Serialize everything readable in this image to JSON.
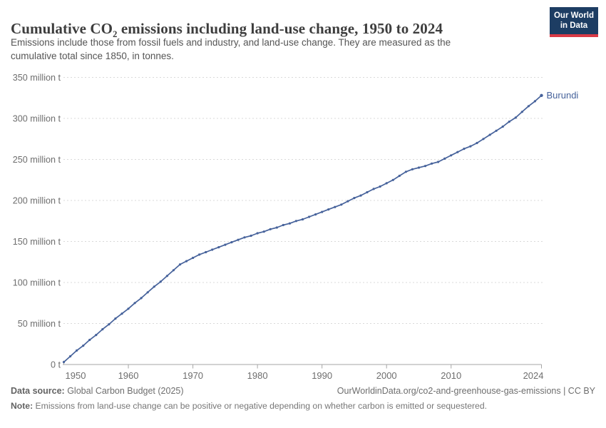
{
  "header": {
    "title_prefix": "Cumulative CO",
    "title_subscript": "2",
    "title_suffix": " emissions including land-use change, 1950 to 2024",
    "subtitle_line1": "Emissions include those from fossil fuels and industry, and land-use change. They are measured as the",
    "subtitle_line2": "cumulative total since 1850, in tonnes.",
    "logo_line1": "Our World",
    "logo_line2": "in Data"
  },
  "chart_data": {
    "type": "line",
    "title": "Cumulative CO2 emissions including land-use change, 1950 to 2024",
    "unit": "million tonnes",
    "xlim": [
      1950,
      2024
    ],
    "ylim": [
      0,
      350
    ],
    "grid": "dashed-horizontal",
    "legend_position": "end-of-line-label",
    "x_ticks": [
      1950,
      1960,
      1970,
      1980,
      1990,
      2000,
      2010,
      2024
    ],
    "y_ticks": [
      0,
      50,
      100,
      150,
      200,
      250,
      300,
      350
    ],
    "y_tick_labels": [
      "0 t",
      "50 million t",
      "100 million t",
      "150 million t",
      "200 million t",
      "250 million t",
      "300 million t",
      "350 million t"
    ],
    "series": [
      {
        "name": "Burundi",
        "color": "#46629b",
        "years": [
          1950,
          1951,
          1952,
          1953,
          1954,
          1955,
          1956,
          1957,
          1958,
          1959,
          1960,
          1961,
          1962,
          1963,
          1964,
          1965,
          1966,
          1967,
          1968,
          1969,
          1970,
          1971,
          1972,
          1973,
          1974,
          1975,
          1976,
          1977,
          1978,
          1979,
          1980,
          1981,
          1982,
          1983,
          1984,
          1985,
          1986,
          1987,
          1988,
          1989,
          1990,
          1991,
          1992,
          1993,
          1994,
          1995,
          1996,
          1997,
          1998,
          1999,
          2000,
          2001,
          2002,
          2003,
          2004,
          2005,
          2006,
          2007,
          2008,
          2009,
          2010,
          2011,
          2012,
          2013,
          2014,
          2015,
          2016,
          2017,
          2018,
          2019,
          2020,
          2021,
          2022,
          2023,
          2024
        ],
        "values": [
          3,
          10,
          17,
          23,
          30,
          36,
          43,
          49,
          56,
          62,
          68,
          75,
          81,
          88,
          95,
          101,
          108,
          115,
          122,
          126,
          130,
          134,
          137,
          140,
          143,
          146,
          149,
          152,
          155,
          157,
          160,
          162,
          165,
          167,
          170,
          172,
          175,
          177,
          180,
          183,
          186,
          189,
          192,
          195,
          199,
          203,
          206,
          210,
          214,
          217,
          221,
          225,
          230,
          235,
          238,
          240,
          242,
          245,
          247,
          251,
          255,
          259,
          263,
          266,
          270,
          275,
          280,
          285,
          290,
          296,
          301,
          308,
          315,
          321,
          328
        ]
      }
    ]
  },
  "colors": {
    "line": "#46629b",
    "grid": "#d9d9d9",
    "axis": "#a6a6a6",
    "tick_label": "#6e6e6e",
    "logo_bg": "#1d3d63",
    "logo_bar": "#d93a46"
  },
  "footer": {
    "source_label": "Data source:",
    "source_text": " Global Carbon Budget (2025)",
    "link_text": "OurWorldinData.org/co2-and-greenhouse-gas-emissions | CC BY",
    "note_label": "Note:",
    "note_text": " Emissions from land-use change can be positive or negative depending on whether carbon is emitted or sequestered."
  }
}
